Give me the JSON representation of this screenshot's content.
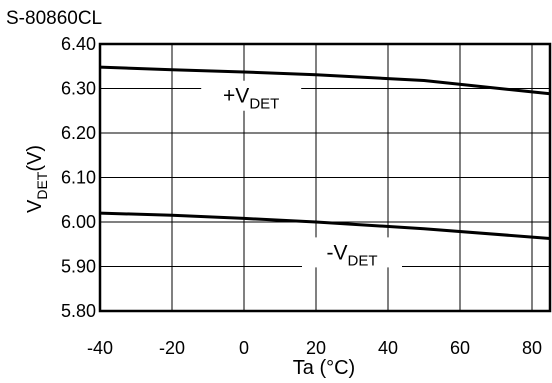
{
  "chart_data": {
    "type": "line",
    "title": "S-80860CL",
    "xlabel": "Ta (°C)",
    "ylabel": {
      "main": "V",
      "sub": "DET",
      "suffix": "(V)"
    },
    "xlim": [
      -40,
      85
    ],
    "ylim": [
      5.8,
      6.4
    ],
    "xticks": [
      -40,
      -20,
      0,
      20,
      40,
      60,
      80
    ],
    "xtick_labels": [
      "-40",
      "-20",
      "0",
      "20",
      "40",
      "60",
      "80"
    ],
    "yticks": [
      5.8,
      5.9,
      6.0,
      6.1,
      6.2,
      6.3,
      6.4
    ],
    "ytick_labels": [
      "5.80",
      "5.90",
      "6.00",
      "6.10",
      "6.20",
      "6.30",
      "6.40"
    ],
    "grid": true,
    "series": [
      {
        "label": {
          "main": "+V",
          "sub": "DET"
        },
        "x": [
          -40,
          -20,
          0,
          20,
          50,
          85
        ],
        "y": [
          6.348,
          6.342,
          6.337,
          6.331,
          6.318,
          6.288
        ]
      },
      {
        "label": {
          "main": "-V",
          "sub": "DET"
        },
        "x": [
          -40,
          -20,
          0,
          20,
          50,
          85
        ],
        "y": [
          6.02,
          6.015,
          6.008,
          6.0,
          5.985,
          5.963
        ]
      }
    ],
    "annotations": [
      {
        "series": 0,
        "x": 2,
        "y": 6.268
      },
      {
        "series": 1,
        "x": 30,
        "y": 5.916
      }
    ]
  }
}
